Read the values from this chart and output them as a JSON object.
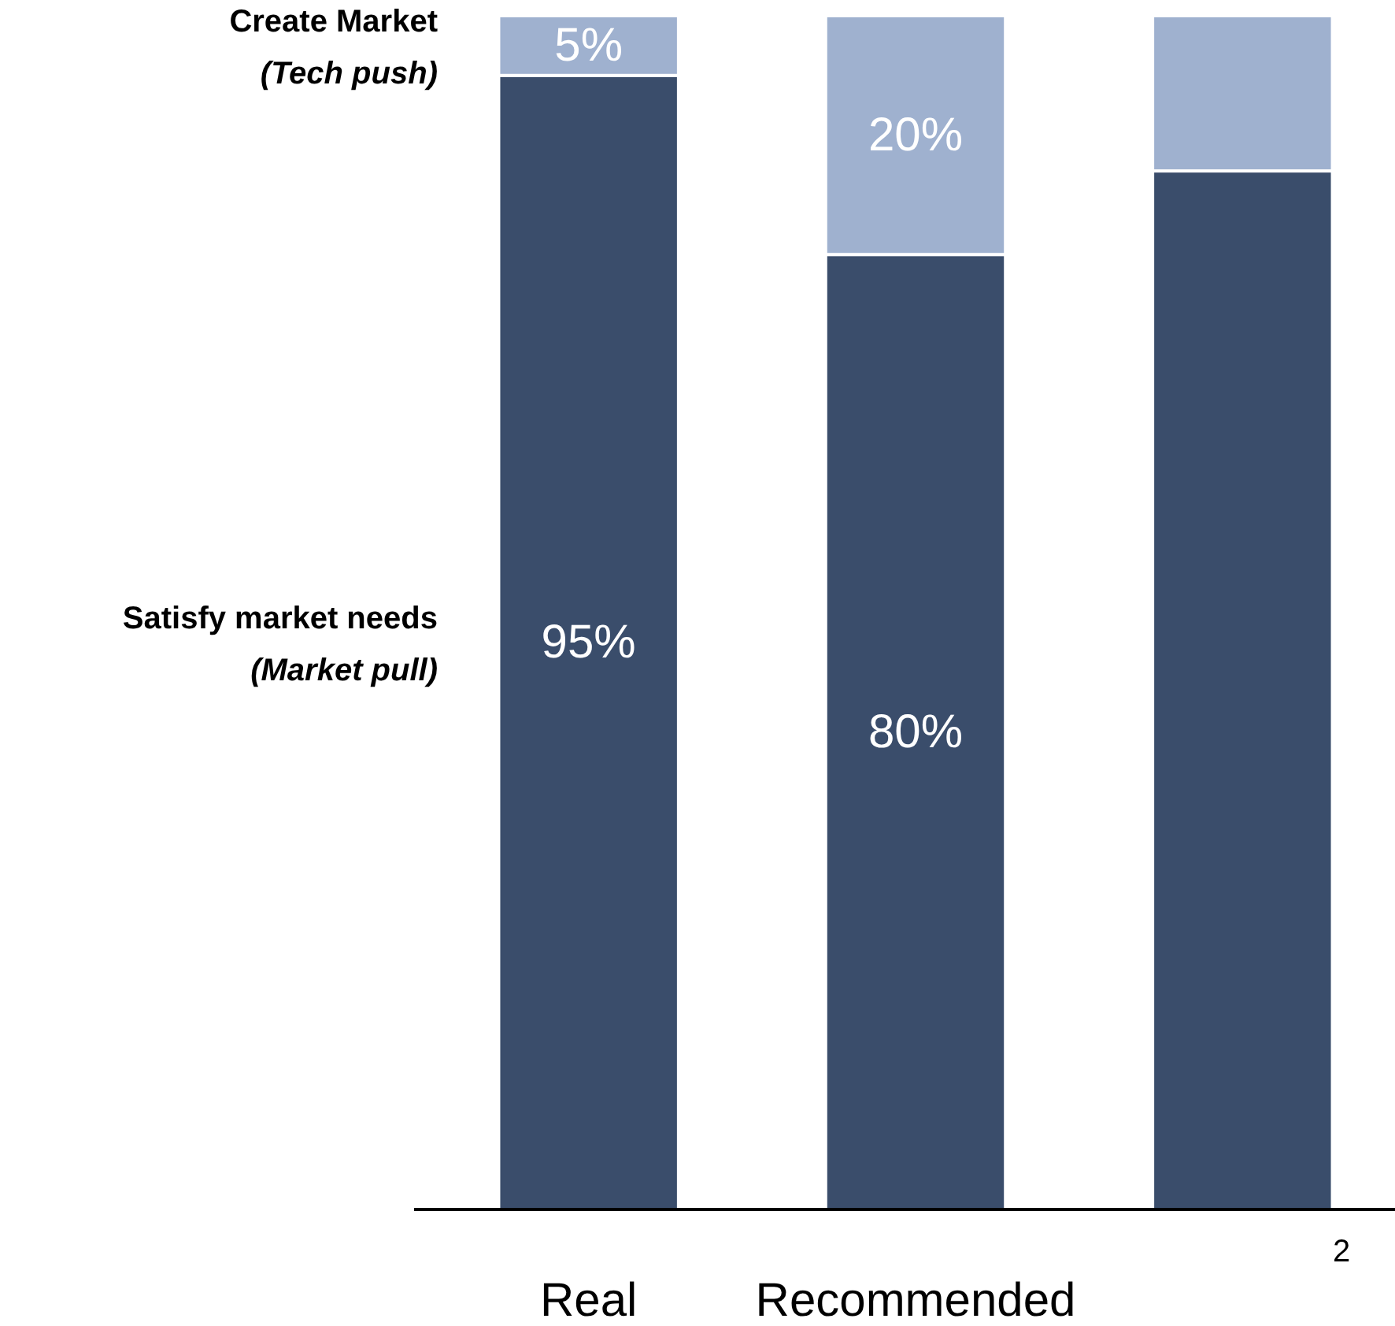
{
  "chart_data": {
    "type": "bar",
    "stacked": true,
    "categories": [
      "Real",
      "Recommended",
      null
    ],
    "series": [
      {
        "name": "Satisfy market needs (Market pull)",
        "color": "#3a4d6b",
        "values": [
          95,
          80,
          87
        ],
        "value_labels": [
          "95%",
          "80%",
          null
        ]
      },
      {
        "name": "Create Market (Tech push)",
        "color": "#9fb1cf",
        "values": [
          5,
          20,
          13
        ],
        "value_labels": [
          "5%",
          "20%",
          null
        ]
      }
    ],
    "ylim": [
      0,
      100
    ],
    "tick_labels": "x",
    "legend": "left",
    "annotations": [
      "2"
    ]
  }
}
